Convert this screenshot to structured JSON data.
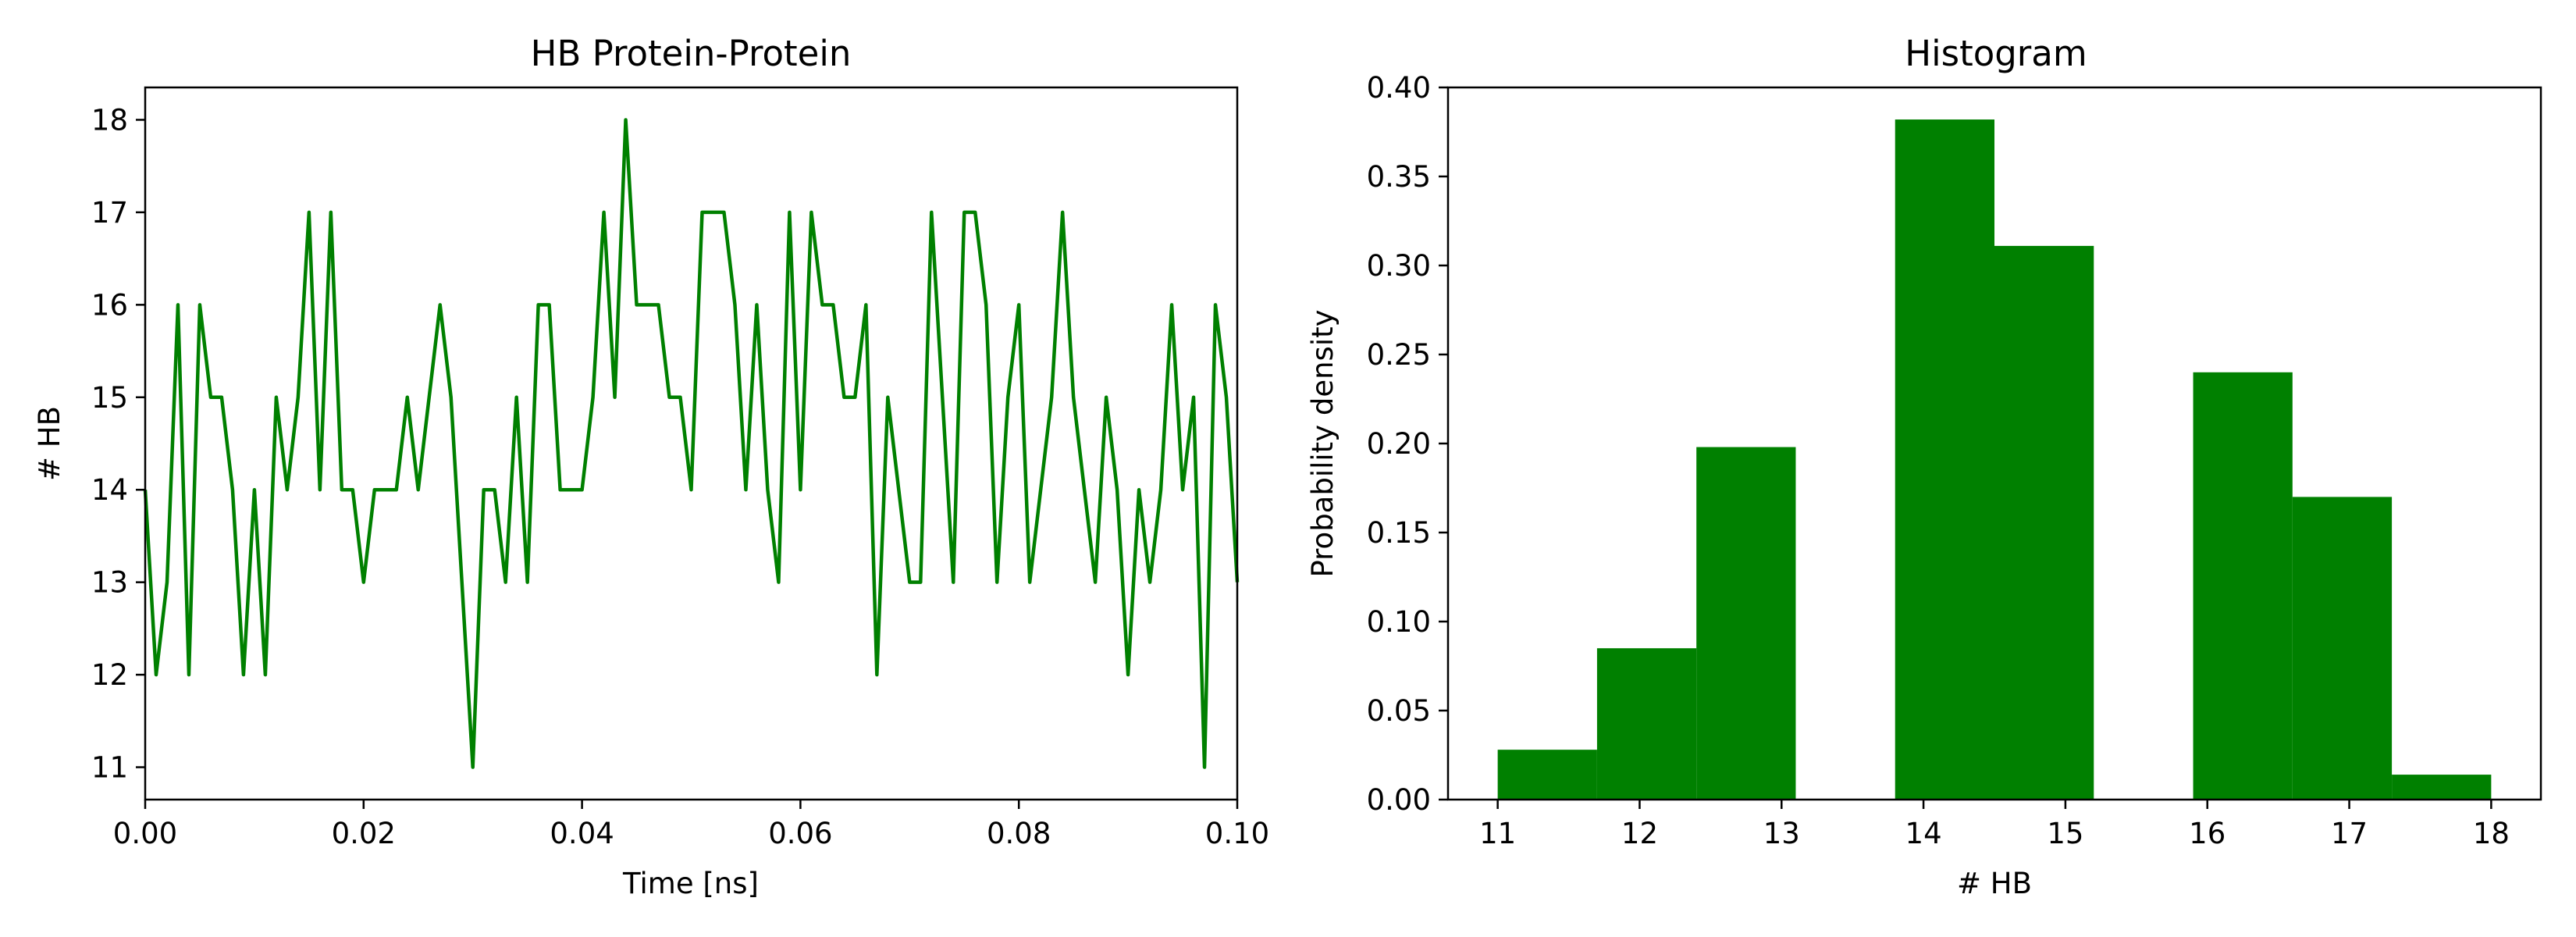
{
  "chart_data": [
    {
      "type": "line",
      "title": "HB Protein-Protein",
      "xlabel": "Time [ns]",
      "ylabel": "# HB",
      "xlim": [
        0.0,
        0.1
      ],
      "ylim": [
        10.65,
        18.35
      ],
      "x_ticks": [
        "0.00",
        "0.02",
        "0.04",
        "0.06",
        "0.08",
        "0.10"
      ],
      "y_ticks": [
        "11",
        "12",
        "13",
        "14",
        "15",
        "16",
        "17",
        "18"
      ],
      "grid": false,
      "color": "#008000",
      "series": [
        {
          "x": [
            0.0,
            0.001,
            0.002,
            0.003,
            0.004,
            0.005,
            0.006,
            0.007,
            0.008,
            0.009,
            0.01,
            0.011,
            0.012,
            0.013,
            0.014,
            0.015,
            0.016,
            0.017,
            0.018,
            0.019,
            0.02,
            0.021,
            0.022,
            0.023,
            0.024,
            0.025,
            0.026,
            0.027,
            0.028,
            0.029,
            0.03,
            0.031,
            0.032,
            0.033,
            0.034,
            0.035,
            0.036,
            0.037,
            0.038,
            0.039,
            0.04,
            0.041,
            0.042,
            0.043,
            0.044,
            0.045,
            0.046,
            0.047,
            0.048,
            0.049,
            0.05,
            0.051,
            0.052,
            0.053,
            0.054,
            0.055,
            0.056,
            0.057,
            0.058,
            0.059,
            0.06,
            0.061,
            0.062,
            0.063,
            0.064,
            0.065,
            0.066,
            0.067,
            0.068,
            0.069,
            0.07,
            0.071,
            0.072,
            0.073,
            0.074,
            0.075,
            0.076,
            0.077,
            0.078,
            0.079,
            0.08,
            0.081,
            0.082,
            0.083,
            0.084,
            0.085,
            0.086,
            0.087,
            0.088,
            0.089,
            0.09,
            0.091,
            0.092,
            0.093,
            0.094,
            0.095,
            0.096,
            0.097,
            0.098,
            0.099,
            0.1
          ],
          "y": [
            14,
            12,
            13,
            16,
            12,
            16,
            15,
            15,
            14,
            12,
            14,
            12,
            15,
            14,
            15,
            17,
            14,
            17,
            14,
            14,
            13,
            14,
            14,
            14,
            15,
            14,
            15,
            16,
            15,
            13,
            11,
            14,
            14,
            13,
            15,
            13,
            16,
            16,
            14,
            14,
            14,
            15,
            17,
            15,
            18,
            16,
            16,
            16,
            15,
            15,
            14,
            17,
            17,
            17,
            16,
            14,
            16,
            14,
            13,
            17,
            14,
            17,
            16,
            16,
            15,
            15,
            16,
            12,
            15,
            14,
            13,
            13,
            17,
            15,
            13,
            17,
            17,
            16,
            13,
            15,
            16,
            13,
            14,
            15,
            17,
            15,
            14,
            13,
            15,
            14,
            12,
            14,
            13,
            14,
            16,
            14,
            15,
            11,
            16,
            15,
            13
          ]
        }
      ]
    },
    {
      "type": "bar",
      "title": "Histogram",
      "xlabel": "# HB",
      "ylabel": "Probability density",
      "xlim": [
        10.65,
        18.35
      ],
      "ylim": [
        0.0,
        0.4
      ],
      "x_ticks": [
        "11",
        "12",
        "13",
        "14",
        "15",
        "16",
        "17",
        "18"
      ],
      "y_ticks": [
        "0.00",
        "0.05",
        "0.10",
        "0.15",
        "0.20",
        "0.25",
        "0.30",
        "0.35",
        "0.40"
      ],
      "grid": false,
      "color": "#008000",
      "bin_edges": [
        11.0,
        11.7,
        12.4,
        13.1,
        13.8,
        14.5,
        15.2,
        15.9,
        16.6,
        17.3,
        18.0
      ],
      "values": [
        0.028,
        0.085,
        0.198,
        0.0,
        0.382,
        0.311,
        0.0,
        0.24,
        0.17,
        0.014
      ]
    }
  ]
}
